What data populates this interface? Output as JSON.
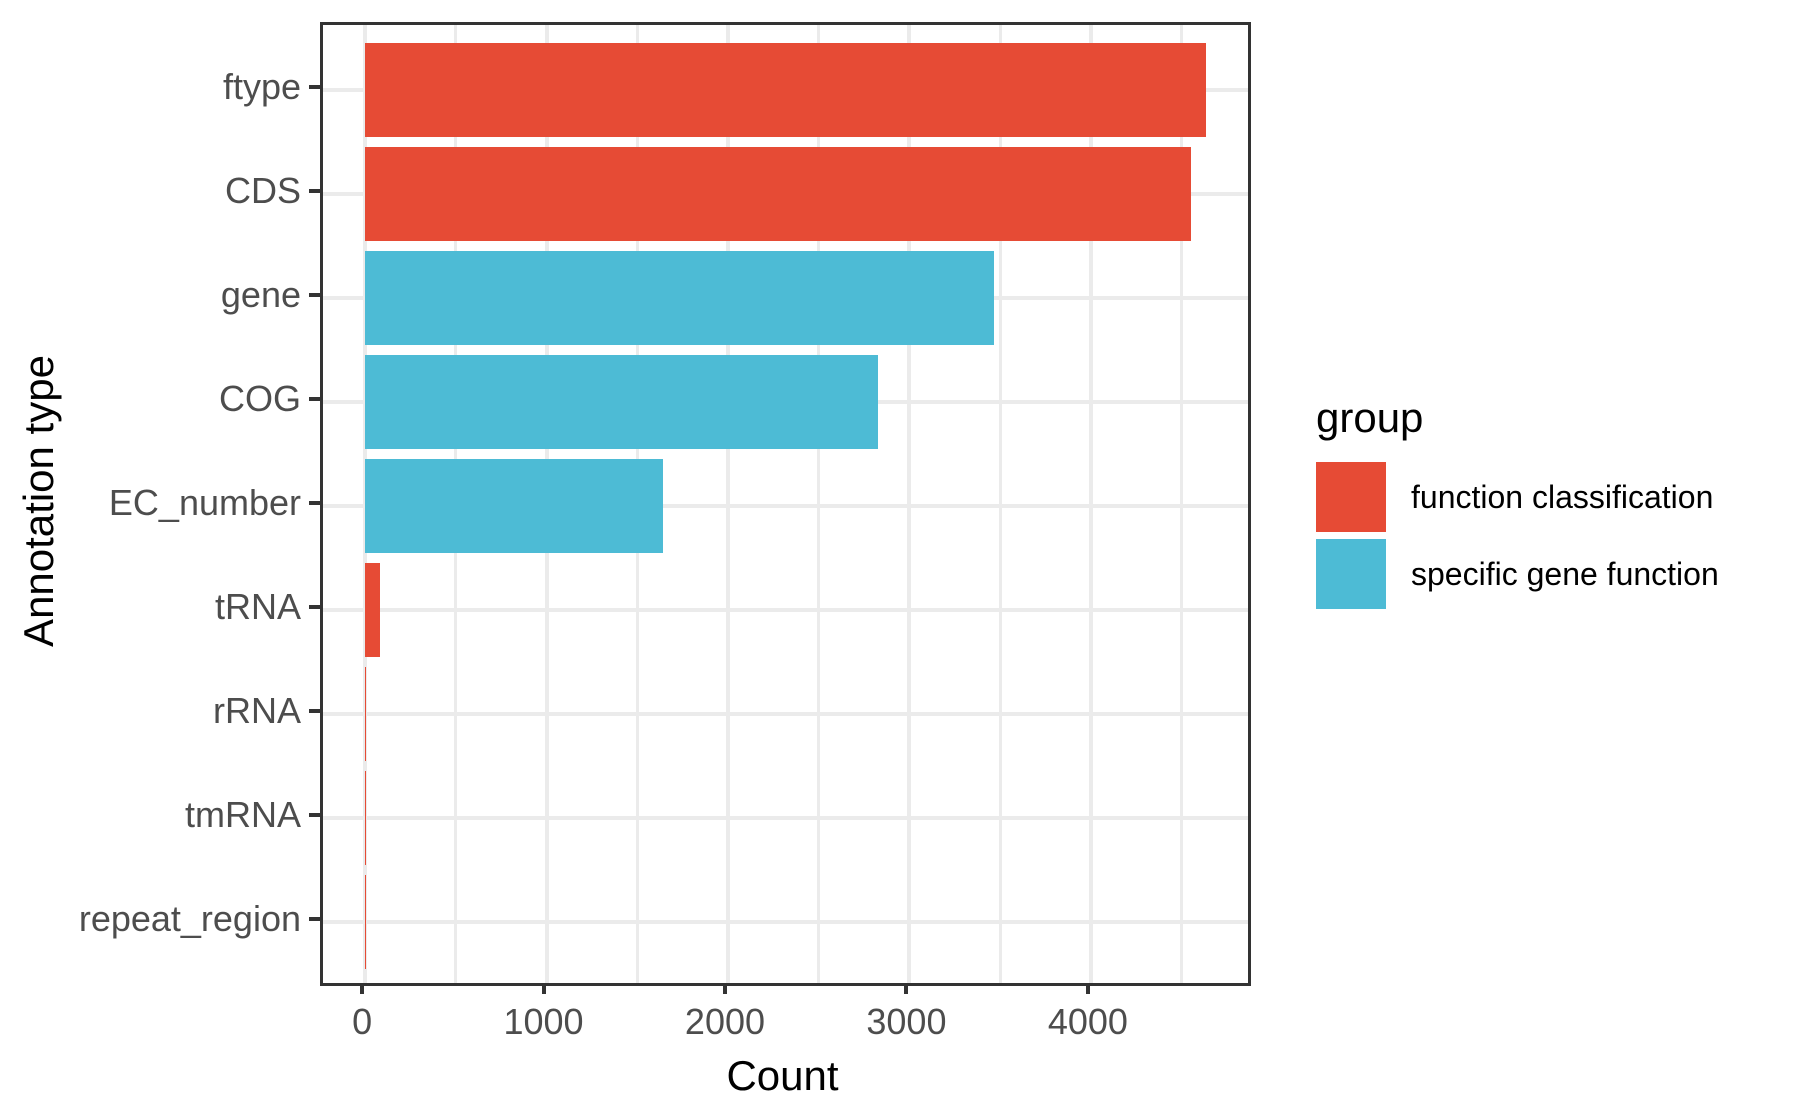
{
  "chart_data": {
    "type": "bar",
    "orientation": "horizontal",
    "title": "",
    "xlabel": "Count",
    "ylabel": "Annotation type",
    "categories": [
      "ftype",
      "CDS",
      "gene",
      "COG",
      "EC_number",
      "tRNA",
      "rRNA",
      "tmRNA",
      "repeat_region"
    ],
    "values": [
      4634,
      4551,
      3467,
      2829,
      1640,
      80,
      1,
      1,
      1
    ],
    "groups": [
      "function classification",
      "function classification",
      "specific gene function",
      "specific gene function",
      "specific gene function",
      "function classification",
      "function classification",
      "function classification",
      "function classification"
    ],
    "x_axis": {
      "tick_labels": [
        "0",
        "1000",
        "2000",
        "3000",
        "4000"
      ],
      "tick_values": [
        0,
        1000,
        2000,
        3000,
        4000
      ],
      "minor_step": 500,
      "display_range": {
        "min": -232,
        "max": 4866
      }
    },
    "grid": true,
    "legend": {
      "title": "group",
      "position": "right",
      "entries": [
        {
          "label": "function classification",
          "color": "#E64B35"
        },
        {
          "label": "specific gene function",
          "color": "#4DBBD5"
        }
      ]
    },
    "style": {
      "panel_border_color": "#333333",
      "gridline_color": "#EBEBEB",
      "tick_mark_color": "#333333",
      "tick_label_color": "#4D4D4D",
      "title_color": "#000000",
      "background": "#FFFFFF"
    }
  }
}
